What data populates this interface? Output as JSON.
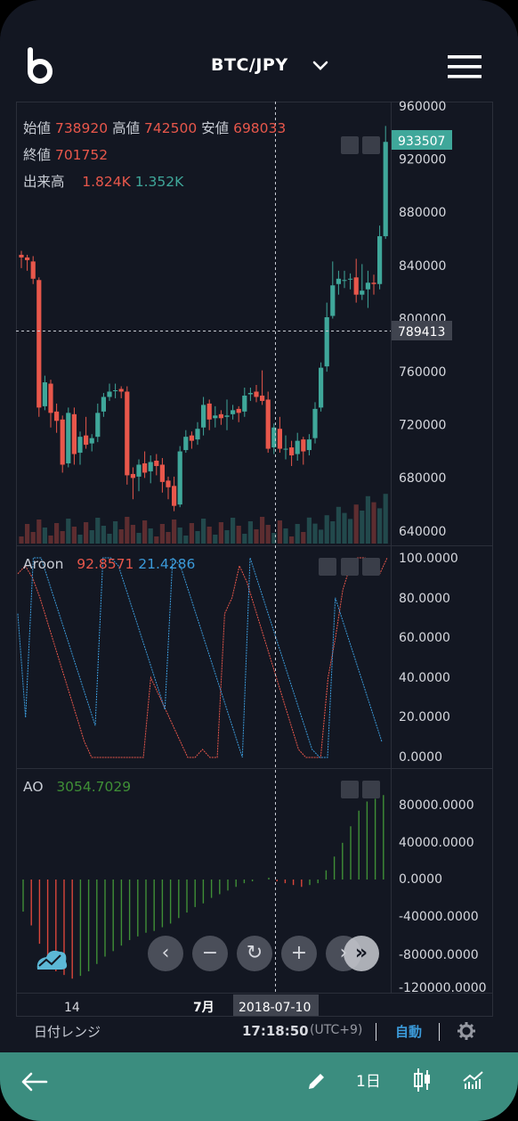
{
  "header": {
    "pair": "BTC/JPY",
    "logo_icon": "bitbank-logo-icon",
    "dropdown_icon": "chevron-down-icon",
    "menu_icon": "hamburger-menu-icon"
  },
  "ohlc": {
    "open_label": "始値",
    "open": "738920",
    "high_label": "高値",
    "high": "742500",
    "low_label": "安値",
    "low": "698033",
    "close_label": "終値",
    "close": "701752",
    "volume_label": "出来高",
    "volume_up": "1.824K",
    "volume_down": "1.352K"
  },
  "price_axis": [
    "960000",
    "920000",
    "880000",
    "840000",
    "800000",
    "760000",
    "720000",
    "680000",
    "640000"
  ],
  "current_price": "933507",
  "cursor_price": "789413",
  "aroon": {
    "label": "Aroon",
    "up": "92.8571",
    "down": "21.4286",
    "axis": [
      "100.0000",
      "80.0000",
      "60.0000",
      "40.0000",
      "20.0000",
      "0.0000"
    ]
  },
  "ao": {
    "label": "AO",
    "value": "3054.7029",
    "axis": [
      "80000.0000",
      "40000.0000",
      "0.0000",
      "-40000.0000",
      "-80000.0000",
      "-120000.0000"
    ]
  },
  "time_axis": {
    "tick1": "14",
    "tick2": "7月",
    "cursor_date": "2018-07-10"
  },
  "toolbar": {
    "date_range": "日付レンジ",
    "time": "17:18:50",
    "timezone": "(UTC+9)",
    "auto": "自動",
    "settings_icon": "gear-icon"
  },
  "zoom_controls": {
    "left": "‹",
    "minus": "−",
    "reset": "↻",
    "plus": "+",
    "right": "›",
    "end": "»"
  },
  "bottom_bar": {
    "back_icon": "arrow-left-icon",
    "draw_icon": "pencil-icon",
    "interval": "1日",
    "candle_icon": "candlestick-icon",
    "indicator_icon": "indicator-icon"
  },
  "colors": {
    "background": "#131722",
    "up": "#3fa79a",
    "down": "#e8574b",
    "ao_positive": "#3f8f36",
    "ao_negative": "#d9463b",
    "aroon_up": "#e8574b",
    "aroon_down": "#3b9ad9",
    "accent": "#3b8d7f"
  },
  "chart_data": {
    "type": "candlestick",
    "candles": [
      [
        848,
        846,
        851,
        838
      ],
      [
        846,
        844,
        848,
        836
      ],
      [
        843,
        830,
        847,
        826
      ],
      [
        829,
        733,
        831,
        726
      ],
      [
        734,
        752,
        757,
        731
      ],
      [
        751,
        729,
        754,
        718
      ],
      [
        730,
        723,
        736,
        714
      ],
      [
        724,
        690,
        727,
        684
      ],
      [
        691,
        729,
        733,
        688
      ],
      [
        728,
        698,
        733,
        690
      ],
      [
        699,
        711,
        715,
        690
      ],
      [
        712,
        705,
        726,
        702
      ],
      [
        706,
        710,
        713,
        700
      ],
      [
        711,
        729,
        736,
        707
      ],
      [
        730,
        741,
        744,
        726
      ],
      [
        741,
        745,
        751,
        738
      ],
      [
        746,
        746,
        751,
        740
      ],
      [
        747,
        745,
        749,
        740
      ],
      [
        745,
        682,
        749,
        675
      ],
      [
        683,
        680,
        688,
        664
      ],
      [
        681,
        690,
        694,
        670
      ],
      [
        691,
        684,
        700,
        680
      ],
      [
        685,
        692,
        697,
        676
      ],
      [
        693,
        689,
        698,
        682
      ],
      [
        690,
        677,
        695,
        669
      ],
      [
        678,
        673,
        681,
        664
      ],
      [
        674,
        659,
        681,
        655
      ],
      [
        660,
        700,
        704,
        658
      ],
      [
        701,
        711,
        716,
        699
      ],
      [
        712,
        708,
        715,
        702
      ],
      [
        709,
        717,
        722,
        705
      ],
      [
        718,
        735,
        741,
        712
      ],
      [
        736,
        724,
        739,
        716
      ],
      [
        725,
        727,
        734,
        718
      ],
      [
        728,
        725,
        731,
        720
      ],
      [
        726,
        727,
        739,
        716
      ],
      [
        728,
        731,
        735,
        724
      ],
      [
        732,
        729,
        734,
        722
      ],
      [
        730,
        742,
        748,
        726
      ],
      [
        743,
        744,
        748,
        738
      ],
      [
        745,
        741,
        750,
        737
      ],
      [
        742,
        738,
        761,
        735
      ],
      [
        739,
        702,
        745,
        699
      ],
      [
        703,
        718,
        721,
        698
      ],
      [
        717,
        702,
        726,
        699
      ],
      [
        702,
        702,
        712,
        694
      ],
      [
        703,
        697,
        708,
        689
      ],
      [
        698,
        708,
        714,
        693
      ],
      [
        709,
        700,
        711,
        690
      ],
      [
        701,
        709,
        713,
        697
      ],
      [
        710,
        732,
        737,
        706
      ],
      [
        733,
        763,
        767,
        730
      ],
      [
        764,
        801,
        812,
        760
      ],
      [
        802,
        825,
        843,
        800
      ],
      [
        826,
        830,
        836,
        818
      ],
      [
        829,
        829,
        836,
        823
      ],
      [
        830,
        830,
        834,
        822
      ],
      [
        831,
        818,
        845,
        812
      ],
      [
        818,
        821,
        841,
        814
      ],
      [
        822,
        827,
        836,
        808
      ],
      [
        827,
        826,
        833,
        818
      ],
      [
        826,
        862,
        870,
        822
      ],
      [
        862,
        933,
        945,
        860
      ]
    ],
    "price_range": [
      630000,
      965000
    ]
  }
}
